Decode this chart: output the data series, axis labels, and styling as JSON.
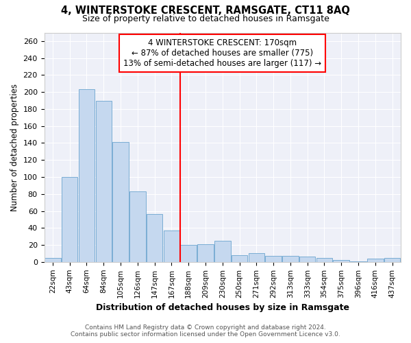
{
  "title_line1": "4, WINTERSTOKE CRESCENT, RAMSGATE, CT11 8AQ",
  "subtitle": "Size of property relative to detached houses in Ramsgate",
  "xlabel": "Distribution of detached houses by size in Ramsgate",
  "ylabel": "Number of detached properties",
  "categories": [
    "22sqm",
    "43sqm",
    "64sqm",
    "84sqm",
    "105sqm",
    "126sqm",
    "147sqm",
    "167sqm",
    "188sqm",
    "209sqm",
    "230sqm",
    "250sqm",
    "271sqm",
    "292sqm",
    "313sqm",
    "333sqm",
    "354sqm",
    "375sqm",
    "396sqm",
    "416sqm",
    "437sqm"
  ],
  "values": [
    5,
    100,
    203,
    190,
    141,
    83,
    56,
    37,
    20,
    21,
    25,
    8,
    10,
    7,
    7,
    6,
    5,
    2,
    1,
    4,
    5
  ],
  "bar_color": "#c5d8ef",
  "bar_edge_color": "#7aadd4",
  "red_line_index": 7,
  "annotation_title": "4 WINTERSTOKE CRESCENT: 170sqm",
  "annotation_line1": "← 87% of detached houses are smaller (775)",
  "annotation_line2": "13% of semi-detached houses are larger (117) →",
  "ylim": [
    0,
    270
  ],
  "yticks": [
    0,
    20,
    40,
    60,
    80,
    100,
    120,
    140,
    160,
    180,
    200,
    220,
    240,
    260
  ],
  "footer_line1": "Contains HM Land Registry data © Crown copyright and database right 2024.",
  "footer_line2": "Contains public sector information licensed under the Open Government Licence v3.0.",
  "bg_color": "#eef0f8"
}
